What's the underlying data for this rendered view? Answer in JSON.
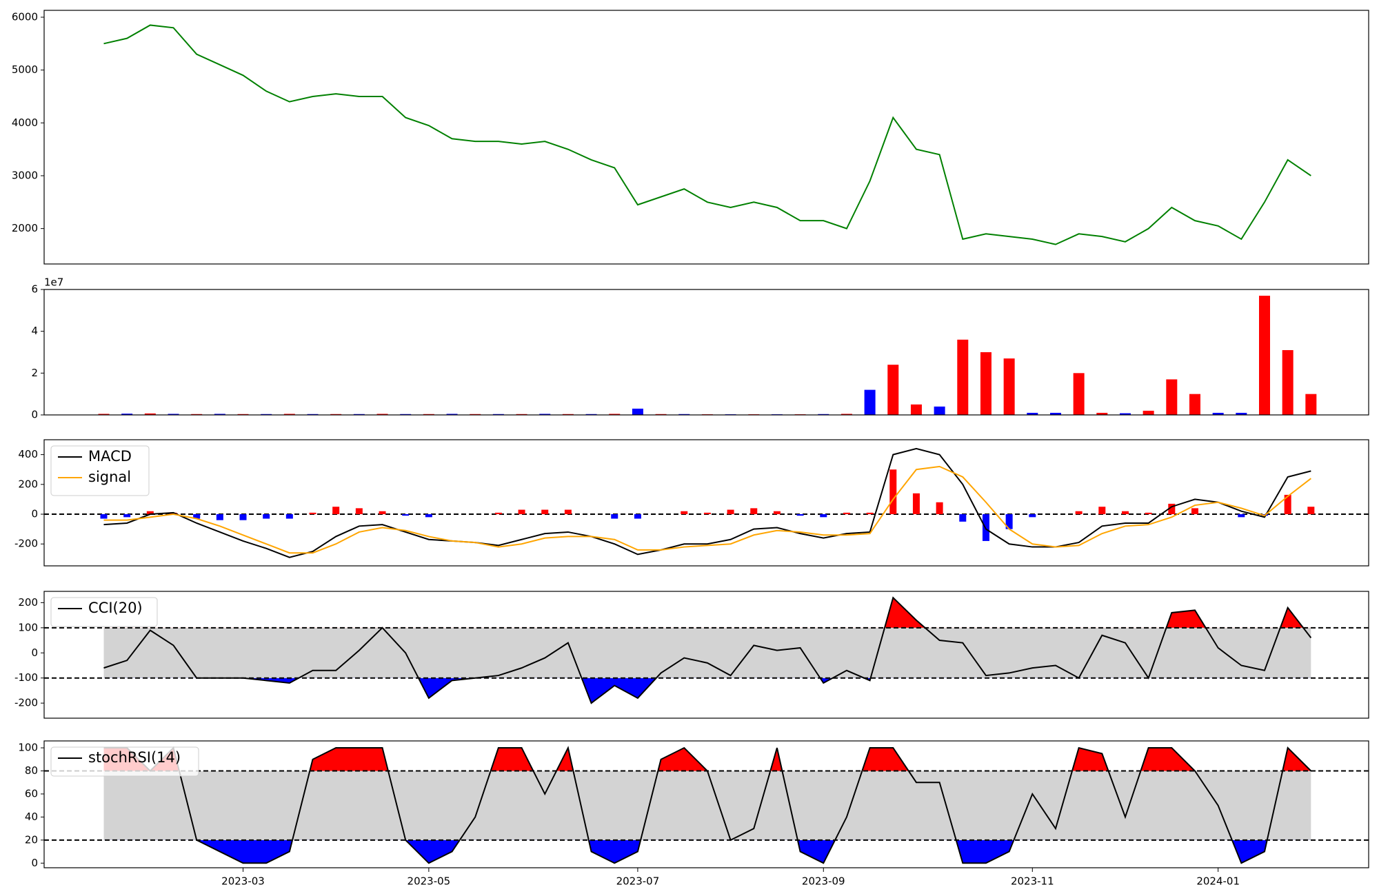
{
  "chart_data": [
    {
      "type": "line",
      "series": [
        {
          "name": null,
          "color": "#008000",
          "values": [
            5500,
            5600,
            5850,
            5800,
            5300,
            5100,
            4900,
            4600,
            4400,
            4500,
            4550,
            4500,
            4500,
            4100,
            3950,
            3700,
            3650,
            3650,
            3600,
            3650,
            3500,
            3300,
            3150,
            2450,
            2600,
            2750,
            2500,
            2400,
            2500,
            2400,
            2150,
            2150,
            2000,
            2900,
            4100,
            3500,
            3400,
            1800,
            1900,
            1850,
            1800,
            1700,
            1900,
            1850,
            1750,
            2000,
            2400,
            2150,
            2050,
            1800,
            2500,
            3300,
            3000
          ]
        }
      ],
      "ylim": [
        1330,
        6130
      ],
      "yticks": [
        2000,
        3000,
        4000,
        5000,
        6000
      ]
    },
    {
      "type": "bar",
      "values": [
        500000,
        600000,
        700000,
        500000,
        400000,
        500000,
        400000,
        400000,
        500000,
        400000,
        400000,
        400000,
        500000,
        400000,
        400000,
        500000,
        400000,
        400000,
        400000,
        500000,
        400000,
        400000,
        500000,
        3000000,
        400000,
        400000,
        300000,
        300000,
        300000,
        300000,
        300000,
        400000,
        500000,
        12000000,
        24000000,
        5000000,
        4000000,
        36000000,
        30000000,
        27000000,
        1000000,
        1000000,
        20000000,
        1000000,
        800000,
        2000000,
        17000000,
        10000000,
        1000000,
        1000000,
        57000000,
        31000000,
        10000000
      ],
      "colors": [
        "red",
        "blue",
        "red",
        "blue",
        "red",
        "blue",
        "red",
        "blue",
        "red",
        "blue",
        "red",
        "blue",
        "red",
        "blue",
        "red",
        "blue",
        "red",
        "blue",
        "red",
        "blue",
        "red",
        "blue",
        "red",
        "blue",
        "red",
        "blue",
        "red",
        "blue",
        "red",
        "blue",
        "red",
        "blue",
        "red",
        "blue",
        "red",
        "red",
        "blue",
        "red",
        "red",
        "red",
        "blue",
        "blue",
        "red",
        "red",
        "blue",
        "red",
        "red",
        "red",
        "blue",
        "blue",
        "red",
        "red",
        "red"
      ],
      "ylim": [
        0,
        60000000
      ],
      "yticks": [
        0,
        {
          "value": 20000000,
          "label": "2"
        },
        {
          "value": 40000000,
          "label": "4"
        },
        {
          "value": 60000000,
          "label": "6"
        }
      ],
      "y_offset_label": "1e7"
    },
    {
      "type": "line",
      "series": [
        {
          "name": "MACD",
          "color": "#000000",
          "values": [
            -70,
            -60,
            0,
            10,
            -60,
            -120,
            -180,
            -230,
            -290,
            -250,
            -150,
            -80,
            -70,
            -120,
            -170,
            -180,
            -190,
            -210,
            -170,
            -130,
            -120,
            -150,
            -200,
            -270,
            -240,
            -200,
            -200,
            -170,
            -100,
            -90,
            -130,
            -160,
            -130,
            -120,
            400,
            440,
            400,
            200,
            -100,
            -200,
            -220,
            -220,
            -190,
            -80,
            -60,
            -60,
            50,
            100,
            80,
            20,
            -20,
            250,
            290
          ]
        },
        {
          "name": "signal",
          "color": "#ffa500",
          "values": [
            -40,
            -40,
            -20,
            0,
            -30,
            -80,
            -140,
            -200,
            -260,
            -260,
            -200,
            -120,
            -90,
            -110,
            -150,
            -180,
            -190,
            -220,
            -200,
            -160,
            -150,
            -150,
            -170,
            -240,
            -240,
            -220,
            -210,
            -200,
            -140,
            -110,
            -120,
            -140,
            -140,
            -130,
            100,
            300,
            320,
            250,
            80,
            -100,
            -200,
            -220,
            -210,
            -130,
            -80,
            -70,
            -20,
            60,
            80,
            40,
            -10,
            120,
            240
          ]
        }
      ],
      "histogram": {
        "values": [
          -30,
          -20,
          20,
          10,
          -30,
          -40,
          -40,
          -30,
          -30,
          10,
          50,
          40,
          20,
          -10,
          -20,
          0,
          0,
          10,
          30,
          30,
          30,
          0,
          -30,
          -30,
          0,
          20,
          10,
          30,
          40,
          20,
          -10,
          -20,
          10,
          10,
          300,
          140,
          80,
          -50,
          -180,
          -100,
          -20,
          0,
          20,
          50,
          20,
          10,
          70,
          40,
          0,
          -20,
          -10,
          130,
          50
        ],
        "up_color": "red",
        "down_color": "blue"
      },
      "hlines": [
        0
      ],
      "ylim": [
        -347,
        500
      ],
      "yticks": [
        -200,
        0,
        200,
        400
      ],
      "legend": "upper left"
    },
    {
      "type": "line",
      "series": [
        {
          "name": "CCI(20)",
          "color": "#000000",
          "values": [
            -60,
            -30,
            90,
            30,
            -100,
            -100,
            -100,
            -110,
            -120,
            -70,
            -70,
            10,
            100,
            0,
            -180,
            -110,
            -100,
            -90,
            -60,
            -20,
            40,
            -200,
            -130,
            -180,
            -80,
            -20,
            -40,
            -90,
            30,
            10,
            20,
            -120,
            -70,
            -110,
            220,
            130,
            50,
            40,
            -90,
            -80,
            -60,
            -50,
            -100,
            70,
            40,
            -100,
            160,
            170,
            20,
            -50,
            -70,
            180,
            60
          ]
        }
      ],
      "thresholds": [
        -100,
        100
      ],
      "band_color": "#d3d3d3",
      "upper_color": "red",
      "lower_color": "blue",
      "ylim": [
        -260,
        245
      ],
      "yticks": [
        -200,
        -100,
        0,
        100,
        200
      ],
      "legend": "upper left"
    },
    {
      "type": "line",
      "series": [
        {
          "name": "stochRSI(14)",
          "color": "#000000",
          "values": [
            100,
            100,
            80,
            100,
            20,
            10,
            0,
            0,
            10,
            90,
            100,
            100,
            100,
            20,
            0,
            10,
            40,
            100,
            100,
            60,
            100,
            10,
            0,
            10,
            90,
            100,
            80,
            20,
            30,
            100,
            10,
            0,
            40,
            100,
            100,
            70,
            70,
            0,
            0,
            10,
            60,
            30,
            100,
            95,
            40,
            100,
            100,
            80,
            50,
            0,
            10,
            100,
            80
          ]
        }
      ],
      "thresholds": [
        20,
        80
      ],
      "band_color": "#d3d3d3",
      "upper_color": "red",
      "lower_color": "blue",
      "ylim": [
        -4,
        106
      ],
      "yticks": [
        0,
        20,
        40,
        60,
        80,
        100
      ],
      "legend": "upper left",
      "categories": [
        null,
        null,
        null,
        null,
        null,
        null,
        "2023-03",
        null,
        null,
        null,
        null,
        null,
        null,
        null,
        "2023-05",
        null,
        null,
        null,
        null,
        null,
        null,
        null,
        null,
        "2023-07",
        null,
        null,
        null,
        null,
        null,
        null,
        null,
        "2023-09",
        null,
        null,
        null,
        null,
        null,
        null,
        null,
        null,
        "2023-11",
        null,
        null,
        null,
        null,
        null,
        null,
        null,
        "2024-01",
        null,
        null,
        null,
        null
      ]
    }
  ]
}
